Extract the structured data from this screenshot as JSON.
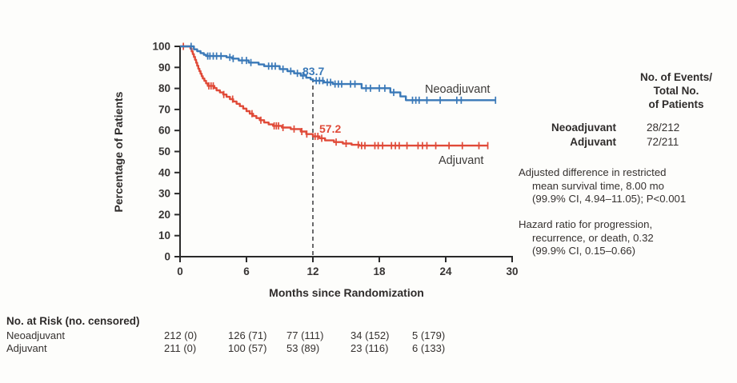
{
  "chart_data": {
    "type": "line",
    "subtype": "kaplan-meier-step",
    "title": "",
    "xlabel": "Months since Randomization",
    "ylabel": "Percentage of Patients",
    "xlim": [
      0,
      30
    ],
    "ylim": [
      0,
      100
    ],
    "x_ticks": [
      0,
      6,
      12,
      18,
      24,
      30
    ],
    "y_ticks": [
      0,
      10,
      20,
      30,
      40,
      50,
      60,
      70,
      80,
      90,
      100
    ],
    "grid": false,
    "legend_position": "inline-labels",
    "reference_line": {
      "x": 12,
      "style": "dashed",
      "color": "#59595b"
    },
    "series": [
      {
        "name": "Adjuvant",
        "color": "#e04a38",
        "annotation": {
          "x": 12,
          "label": "57.2"
        },
        "steps": [
          [
            0,
            100
          ],
          [
            0.95,
            98.9
          ],
          [
            1.05,
            97.6
          ],
          [
            1.15,
            96.3
          ],
          [
            1.25,
            95.0
          ],
          [
            1.35,
            93.6
          ],
          [
            1.45,
            92.2
          ],
          [
            1.55,
            90.8
          ],
          [
            1.65,
            89.4
          ],
          [
            1.75,
            88.2
          ],
          [
            1.85,
            87.0
          ],
          [
            1.95,
            85.8
          ],
          [
            2.05,
            84.7
          ],
          [
            2.2,
            83.6
          ],
          [
            2.35,
            82.4
          ],
          [
            2.5,
            81.2
          ],
          [
            3.1,
            80.2
          ],
          [
            3.3,
            79.1
          ],
          [
            3.6,
            78.1
          ],
          [
            3.9,
            77.1
          ],
          [
            4.2,
            76.0
          ],
          [
            4.5,
            74.9
          ],
          [
            4.8,
            73.8
          ],
          [
            5.1,
            72.7
          ],
          [
            5.4,
            71.6
          ],
          [
            5.7,
            70.4
          ],
          [
            6.0,
            69.2
          ],
          [
            6.3,
            68.0
          ],
          [
            6.6,
            66.9
          ],
          [
            6.9,
            65.9
          ],
          [
            7.2,
            64.9
          ],
          [
            7.6,
            63.8
          ],
          [
            8.0,
            62.9
          ],
          [
            8.4,
            62.2
          ],
          [
            9.2,
            61.4
          ],
          [
            10.0,
            60.7
          ],
          [
            10.9,
            59.5
          ],
          [
            11.4,
            58.3
          ],
          [
            12.0,
            57.2
          ],
          [
            12.6,
            56.3
          ],
          [
            13.1,
            55.3
          ],
          [
            13.9,
            54.5
          ],
          [
            14.7,
            53.8
          ],
          [
            15.5,
            53.2
          ],
          [
            16.2,
            52.8
          ],
          [
            27.8,
            52.8
          ]
        ],
        "censor_months": [
          0.3,
          2.6,
          2.8,
          3.0,
          3.95,
          4.75,
          6.5,
          7.3,
          8.5,
          8.7,
          8.9,
          9.3,
          10.3,
          11.0,
          11.45,
          12.2,
          12.45,
          12.8,
          14.1,
          15.0,
          16.1,
          16.4,
          16.7,
          17.6,
          17.9,
          18.3,
          19.1,
          19.45,
          19.8,
          20.5,
          21.5,
          21.9,
          22.3,
          23.1,
          24.3,
          25.5,
          27.0,
          27.8
        ]
      },
      {
        "name": "Neoadjuvant",
        "color": "#3a79b8",
        "annotation": {
          "x": 12,
          "label": "83.7"
        },
        "steps": [
          [
            0,
            100
          ],
          [
            1.25,
            98.6
          ],
          [
            1.55,
            97.7
          ],
          [
            1.85,
            96.8
          ],
          [
            2.15,
            96.0
          ],
          [
            2.35,
            95.4
          ],
          [
            4.2,
            94.8
          ],
          [
            4.7,
            94.2
          ],
          [
            5.3,
            93.3
          ],
          [
            6.2,
            92.3
          ],
          [
            7.1,
            91.4
          ],
          [
            7.6,
            90.6
          ],
          [
            9.0,
            89.2
          ],
          [
            9.7,
            88.2
          ],
          [
            10.3,
            87.2
          ],
          [
            10.9,
            86.1
          ],
          [
            11.4,
            85.1
          ],
          [
            11.8,
            84.3
          ],
          [
            12.0,
            83.7
          ],
          [
            13.0,
            82.9
          ],
          [
            13.8,
            82.1
          ],
          [
            16.4,
            80.1
          ],
          [
            19.0,
            78.1
          ],
          [
            19.9,
            76.2
          ],
          [
            20.4,
            74.4
          ],
          [
            28.5,
            74.4
          ]
        ],
        "censor_months": [
          1.0,
          2.5,
          2.7,
          3.0,
          3.3,
          3.7,
          4.5,
          4.8,
          5.6,
          6.0,
          6.4,
          8.0,
          8.3,
          8.6,
          9.3,
          10.0,
          10.6,
          11.1,
          12.3,
          12.6,
          12.9,
          13.3,
          13.6,
          14.0,
          14.3,
          14.6,
          15.4,
          15.8,
          16.8,
          17.2,
          18.0,
          18.5,
          19.3,
          21.0,
          21.3,
          21.6,
          22.3,
          23.5,
          25.0,
          25.4,
          28.5
        ]
      }
    ]
  },
  "curve_labels": {
    "neoadjuvant": "Neoadjuvant",
    "adjuvant": "Adjuvant"
  },
  "events_panel": {
    "header_line1": "No. of Events/",
    "header_line2": "Total No.",
    "header_line3": "of Patients",
    "rows": [
      {
        "label": "Neoadjuvant",
        "value": "28/212"
      },
      {
        "label": "Adjuvant",
        "value": "72/211"
      }
    ]
  },
  "stats_notes": {
    "rmst": {
      "line1": "Adjusted difference in restricted",
      "line2": "mean survival time, 8.00 mo",
      "line3": "(99.9% CI, 4.94–11.05); P<0.001"
    },
    "hazard": {
      "line1": "Hazard ratio for progression,",
      "line2": "recurrence, or death, 0.32",
      "line3": "(99.9% CI, 0.15–0.66)"
    }
  },
  "risk_table": {
    "title": "No. at Risk (no. censored)",
    "rows": [
      {
        "label": "Neoadjuvant",
        "values": [
          "212 (0)",
          "126 (71)",
          "77 (111)",
          "34 (152)",
          "5 (179)"
        ]
      },
      {
        "label": "Adjuvant",
        "values": [
          "211 (0)",
          "100 (57)",
          "53 (89)",
          "23 (116)",
          "6 (133)"
        ]
      }
    ]
  },
  "colors": {
    "neoadjuvant": "#3a79b8",
    "adjuvant": "#e04a38",
    "axis": "#2a2a2a",
    "text": "#33302e",
    "reference_line": "#59595b"
  }
}
